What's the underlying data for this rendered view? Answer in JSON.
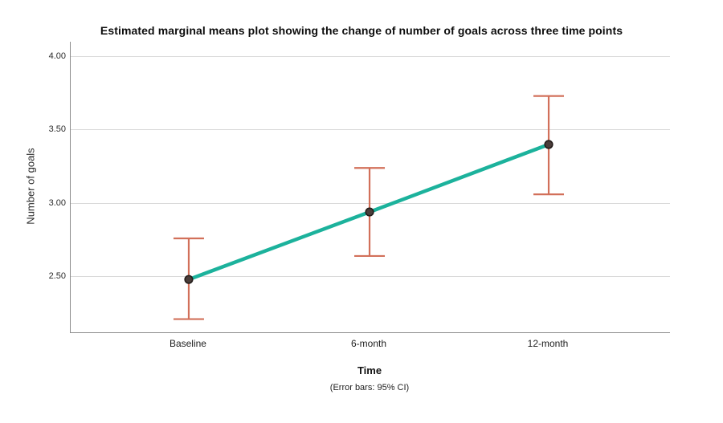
{
  "page": {
    "background": "#ffffff"
  },
  "chart_data": {
    "type": "line",
    "title": "Estimated marginal means plot showing the change of number of goals across three time points",
    "xlabel": "Time",
    "ylabel": "Number of goals",
    "footnote": "(Error bars: 95% CI)",
    "categories": [
      "Baseline",
      "6-month",
      "12-month"
    ],
    "series": [
      {
        "name": "Estimated marginal means",
        "values": [
          2.48,
          2.94,
          3.4
        ]
      }
    ],
    "error_bars": {
      "label": "95% CI",
      "low": [
        2.21,
        2.64,
        3.06
      ],
      "high": [
        2.76,
        3.24,
        3.73
      ]
    },
    "ylim": [
      2.12,
      4.1
    ],
    "yticks": [
      {
        "value": 2.5,
        "label": "2.50"
      },
      {
        "value": 3.0,
        "label": "3.00"
      },
      {
        "value": 3.5,
        "label": "3.50"
      },
      {
        "value": 4.0,
        "label": "4.00"
      }
    ],
    "grid": "horizontal",
    "legend": "none",
    "colors": {
      "line": "#1cb29c",
      "error_bar": "#d2705a",
      "marker_fill": "#4a3d3a",
      "marker_stroke": "#241d1b",
      "gridline": "#d9d9d9",
      "axis": "#8c8c8c",
      "text": "#1e1e1e"
    }
  }
}
